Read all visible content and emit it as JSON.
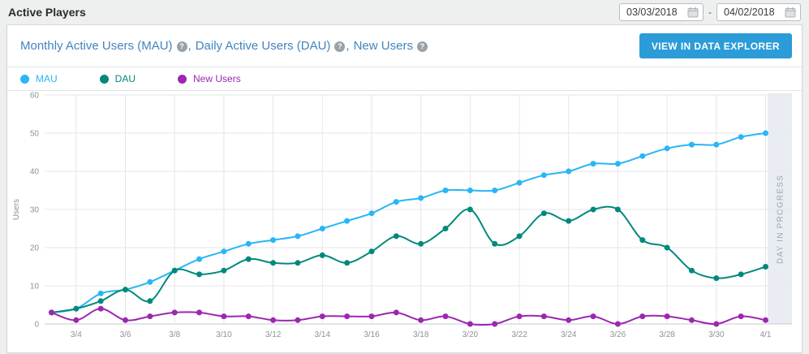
{
  "header": {
    "title": "Active Players",
    "date_range": {
      "from": "03/03/2018",
      "to": "04/02/2018",
      "separator": "-"
    }
  },
  "panel": {
    "title_items": [
      {
        "label": "Monthly Active Users (MAU)"
      },
      {
        "label": "Daily Active Users (DAU)"
      },
      {
        "label": "New Users"
      }
    ],
    "title_separator": ",",
    "help_glyph": "?",
    "explorer_button": "VIEW IN DATA EXPLORER"
  },
  "legend": [
    {
      "label": "MAU",
      "color": "#29b6f6"
    },
    {
      "label": "DAU",
      "color": "#00897b"
    },
    {
      "label": "New Users",
      "color": "#9c27b0"
    }
  ],
  "chart_data": {
    "type": "line",
    "title": "",
    "x": [
      "3/3",
      "3/4",
      "3/5",
      "3/6",
      "3/7",
      "3/8",
      "3/9",
      "3/10",
      "3/11",
      "3/12",
      "3/13",
      "3/14",
      "3/15",
      "3/16",
      "3/17",
      "3/18",
      "3/19",
      "3/20",
      "3/21",
      "3/22",
      "3/23",
      "3/24",
      "3/25",
      "3/26",
      "3/27",
      "3/28",
      "3/29",
      "3/30",
      "3/31",
      "4/1"
    ],
    "x_tick_labels": [
      "3/4",
      "3/6",
      "3/8",
      "3/10",
      "3/12",
      "3/14",
      "3/16",
      "3/18",
      "3/20",
      "3/22",
      "3/24",
      "3/26",
      "3/28",
      "3/30",
      "4/1"
    ],
    "series": [
      {
        "name": "MAU",
        "color": "#29b6f6",
        "values": [
          3,
          4,
          8,
          9,
          11,
          14,
          17,
          19,
          21,
          22,
          23,
          25,
          27,
          29,
          32,
          33,
          35,
          35,
          35,
          37,
          39,
          40,
          42,
          42,
          44,
          46,
          47,
          47,
          49,
          50
        ]
      },
      {
        "name": "DAU",
        "color": "#00897b",
        "values": [
          3,
          4,
          6,
          9,
          6,
          14,
          13,
          14,
          17,
          16,
          16,
          18,
          16,
          19,
          23,
          21,
          25,
          30,
          21,
          23,
          29,
          27,
          30,
          30,
          22,
          20,
          14,
          12,
          13,
          15
        ]
      },
      {
        "name": "New Users",
        "color": "#9c27b0",
        "values": [
          3,
          1,
          4,
          1,
          2,
          3,
          3,
          2,
          2,
          1,
          1,
          2,
          2,
          2,
          3,
          1,
          2,
          0,
          0,
          2,
          2,
          1,
          2,
          0,
          2,
          2,
          1,
          0,
          2,
          1
        ]
      }
    ],
    "xlabel": "",
    "ylabel": "Users",
    "ylim": [
      0,
      60
    ],
    "yticks": [
      0,
      10,
      20,
      30,
      40,
      50,
      60
    ],
    "grid": true,
    "legend_position": "top",
    "annotations": [
      {
        "type": "band",
        "label": "DAY IN PROGRESS",
        "color": "#e9edf3",
        "text_color": "#9aa2ac"
      }
    ]
  }
}
